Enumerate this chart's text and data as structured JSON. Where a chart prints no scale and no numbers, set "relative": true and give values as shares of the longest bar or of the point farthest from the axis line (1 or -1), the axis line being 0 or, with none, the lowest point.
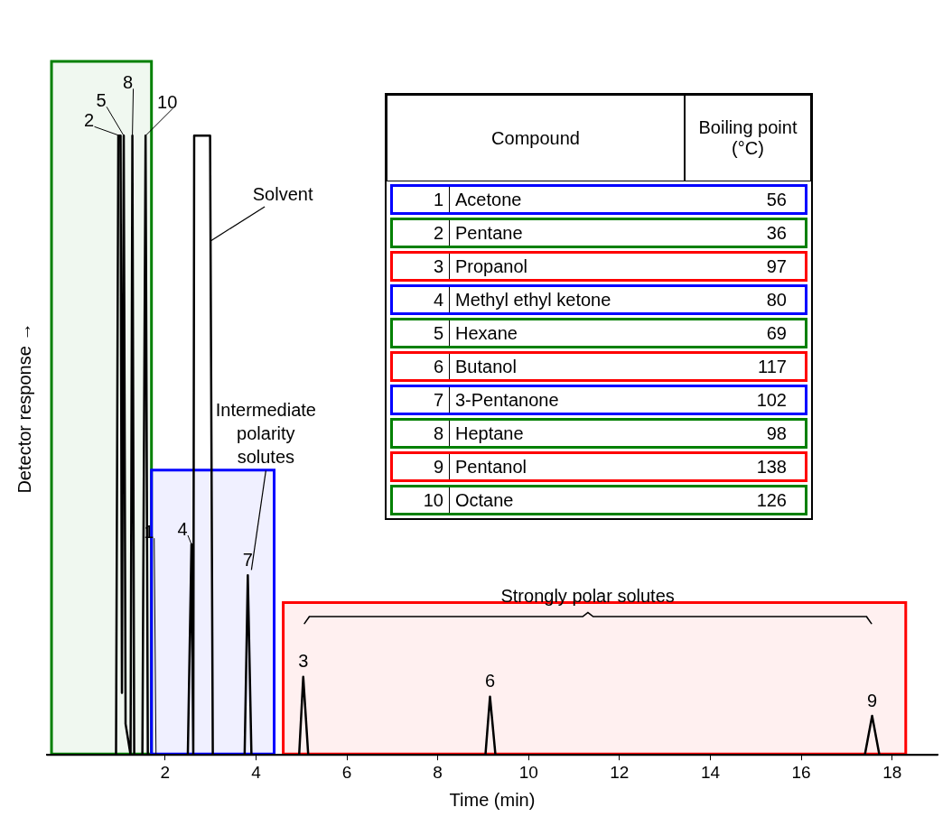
{
  "chart_data": {
    "type": "line",
    "relative": true,
    "xlabel": "Time (min)",
    "ylabel": "Detector response →",
    "xlim": [
      -0.6,
      19
    ],
    "xticks": [
      2,
      4,
      6,
      8,
      10,
      12,
      14,
      16,
      18
    ],
    "grid": false,
    "legend": false,
    "marker": "none",
    "line_style": "solid",
    "series": [
      {
        "color": "#000000",
        "x": [
          -0.6,
          0.92,
          0.97,
          1.02,
          1.05,
          1.09,
          1.13,
          1.24,
          1.28,
          1.32,
          1.5,
          1.57,
          1.62,
          2.5,
          2.58,
          2.62,
          2.64,
          2.99,
          3.05,
          3.75,
          3.82,
          3.9,
          4.95,
          5.04,
          5.15,
          9.05,
          9.15,
          9.27,
          17.4,
          17.56,
          17.72,
          19
        ],
        "values": [
          0,
          0,
          1,
          1,
          0.1,
          1,
          0.05,
          0,
          1,
          0,
          0,
          1,
          0,
          0,
          0.34,
          0,
          1,
          1,
          0,
          0,
          0.29,
          0,
          0,
          0.126,
          0,
          0,
          0.094,
          0,
          0,
          0.063,
          0,
          0
        ]
      }
    ],
    "bands": [
      {
        "axis": "x",
        "from": -0.5,
        "to": 1.7,
        "color": "#008000"
      },
      {
        "axis": "x",
        "from": 1.7,
        "to": 4.4,
        "color": "#0000ff"
      },
      {
        "axis": "x",
        "from": 4.6,
        "to": 18.3,
        "color": "#ff0000"
      }
    ],
    "annotations": [
      {
        "text": "1",
        "x": 1.8,
        "y": 0
      },
      {
        "text": "2",
        "x": 1.0,
        "y": 1
      },
      {
        "text": "3",
        "x": 5.04,
        "y": 0.126
      },
      {
        "text": "4",
        "x": 2.58,
        "y": 0.34
      },
      {
        "text": "5",
        "x": 1.09,
        "y": 1
      },
      {
        "text": "6",
        "x": 9.15,
        "y": 0.094
      },
      {
        "text": "7",
        "x": 3.82,
        "y": 0.29
      },
      {
        "text": "8",
        "x": 1.28,
        "y": 1
      },
      {
        "text": "9",
        "x": 17.56,
        "y": 0.063
      },
      {
        "text": "10",
        "x": 1.57,
        "y": 1
      },
      {
        "text": "Solvent",
        "x": 3.0,
        "y": 0.83
      },
      {
        "text": "Intermediate polarity solutes",
        "x": 3.82,
        "y": 0.29
      },
      "Strongly polar solutes",
      "Compound",
      "Boiling point (°C)",
      "1",
      "Acetone",
      "56",
      "2",
      "Pentane",
      "36",
      "3",
      "Propanol",
      "97",
      "4",
      "Methyl ethyl ketone",
      "80",
      "5",
      "Hexane",
      "69",
      "6",
      "Butanol",
      "117",
      "7",
      "3-Pentanone",
      "102",
      "8",
      "Heptane",
      "98",
      "9",
      "Pentanol",
      "138",
      "10",
      "Octane",
      "126"
    ]
  }
}
